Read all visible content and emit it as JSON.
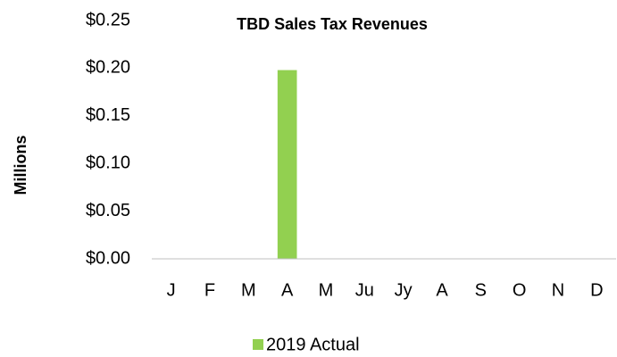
{
  "chart_data": {
    "type": "bar",
    "title": "TBD Sales Tax Revenues",
    "y_label": "Millions",
    "categories": [
      "J",
      "F",
      "M",
      "A",
      "M",
      "Ju",
      "Jy",
      "A",
      "S",
      "O",
      "N",
      "D"
    ],
    "series": [
      {
        "name": "2019 Actual",
        "color": "#92d050",
        "values": [
          null,
          null,
          null,
          0.198,
          null,
          null,
          null,
          null,
          null,
          null,
          null,
          null
        ]
      }
    ],
    "ylim": [
      0,
      0.25
    ],
    "yticks": [
      {
        "value": 0,
        "label": "$0.00"
      },
      {
        "value": 0.05,
        "label": "$0.05"
      },
      {
        "value": 0.1,
        "label": "$0.10"
      },
      {
        "value": 0.15,
        "label": "$0.15"
      },
      {
        "value": 0.2,
        "label": "$0.20"
      },
      {
        "value": 0.25,
        "label": "$0.25"
      }
    ],
    "grid": false,
    "legend": "bottom"
  }
}
